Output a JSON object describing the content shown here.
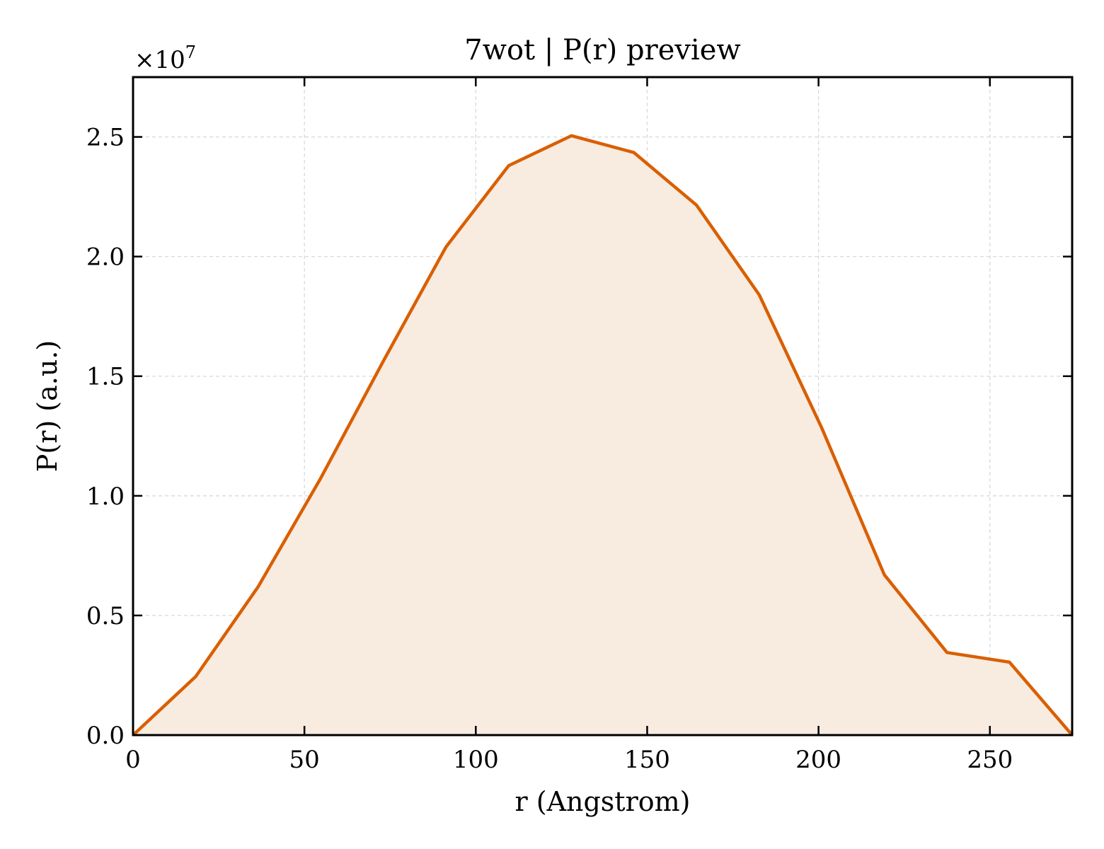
{
  "chart_data": {
    "type": "area",
    "title": "7wot | P(r) preview",
    "xlabel": "r (Angstrom)",
    "ylabel": "P(r) (a.u.)",
    "y_offset_label": "×10",
    "y_offset_exponent": "7",
    "xlim": [
      0,
      274
    ],
    "ylim": [
      0,
      2.75
    ],
    "y_multiplier": 10000000,
    "x_ticks": [
      0,
      50,
      100,
      150,
      200,
      250
    ],
    "x_tick_labels": [
      "0",
      "50",
      "100",
      "150",
      "200",
      "250"
    ],
    "y_ticks": [
      0,
      0.5,
      1,
      1.5,
      2,
      2.5
    ],
    "y_tick_labels": [
      "0.0",
      "0.5",
      "1.0",
      "1.5",
      "2.0",
      "2.5"
    ],
    "grid": true,
    "series": [
      {
        "x": [
          0,
          18.3,
          36.5,
          54.8,
          73.1,
          91.3,
          109.6,
          127.9,
          146.1,
          164.4,
          182.7,
          200.9,
          219.2,
          237.5,
          255.7,
          274
        ],
        "y": [
          0,
          0.245,
          0.62,
          1.075,
          1.565,
          2.04,
          2.38,
          2.505,
          2.435,
          2.215,
          1.84,
          1.285,
          0.67,
          0.345,
          0.305,
          0
        ]
      }
    ],
    "colors": {
      "line": "#d95f02",
      "fill": "#f8ebe0",
      "grid": "#d9d9d9",
      "axes": "#000000"
    }
  }
}
